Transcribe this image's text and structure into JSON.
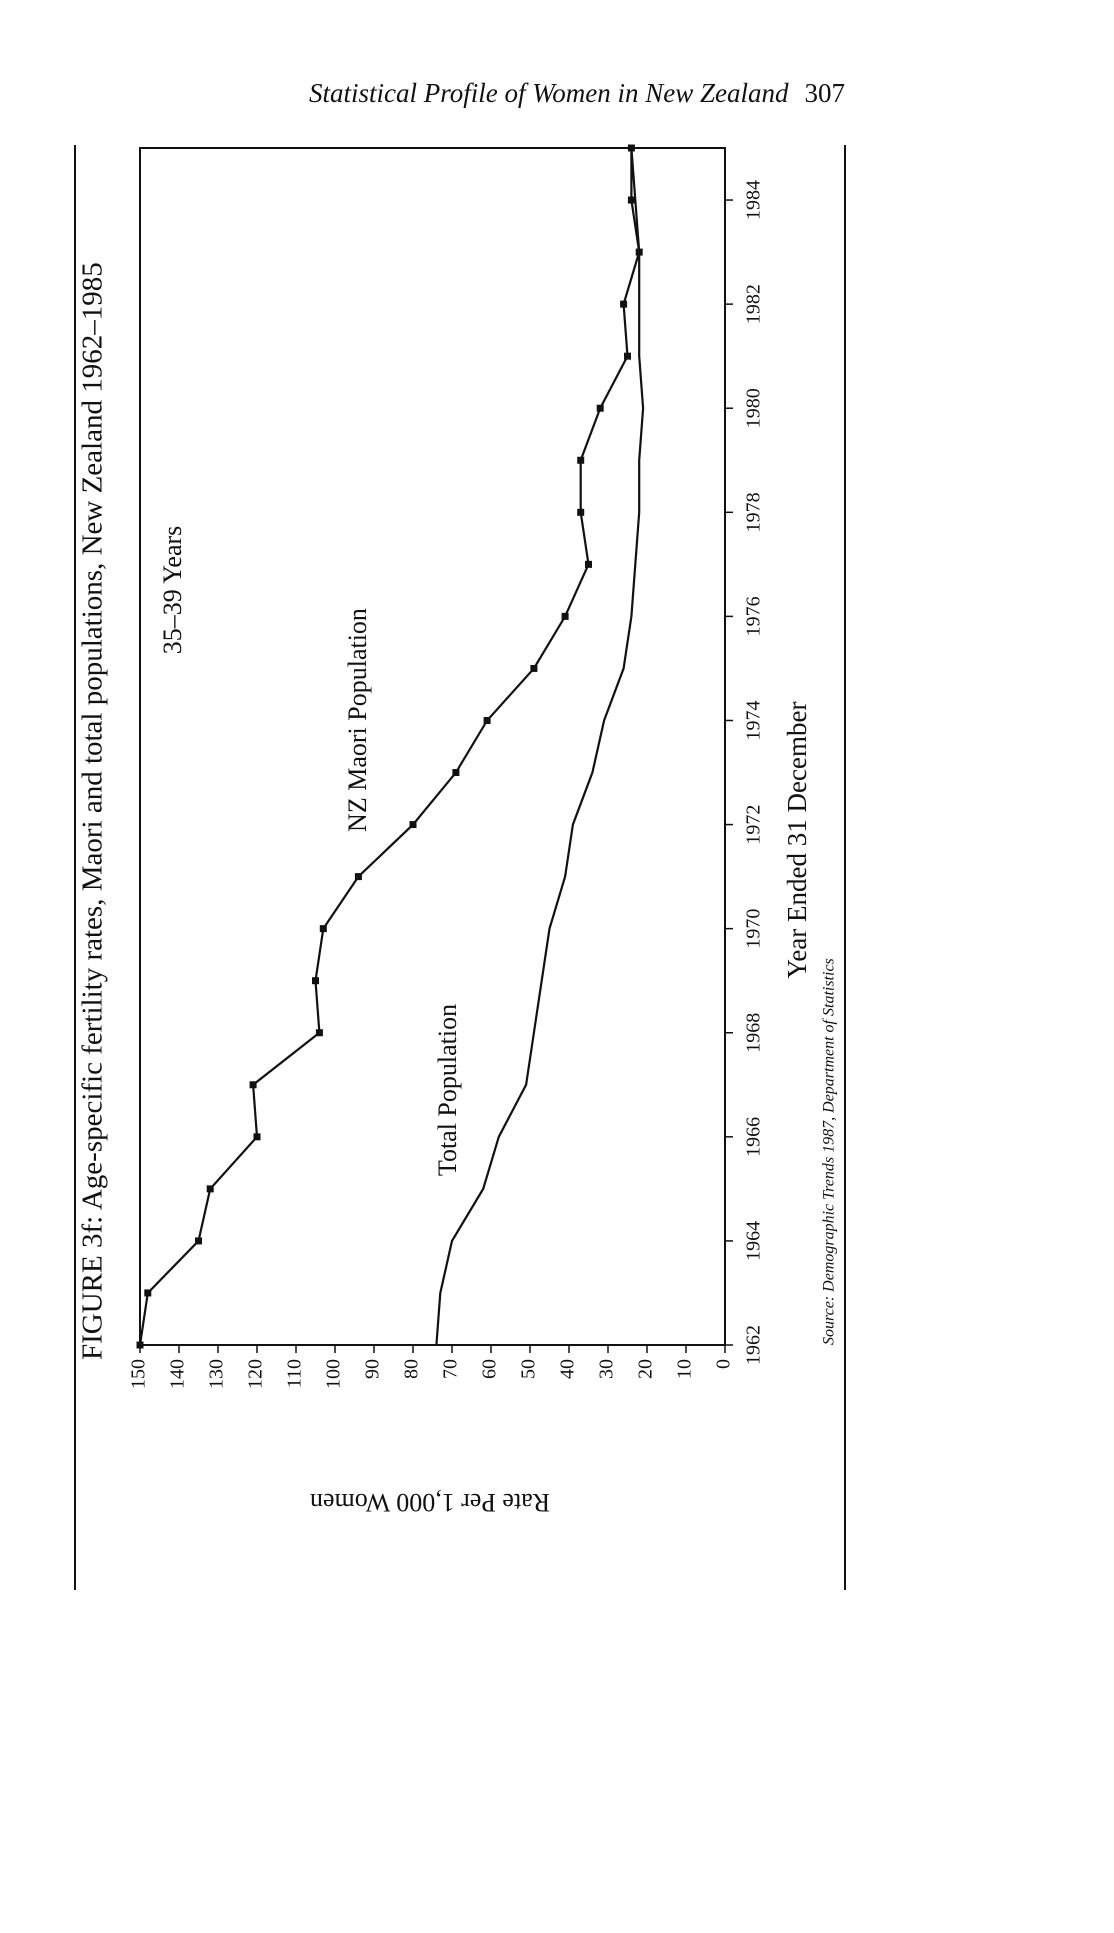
{
  "page_header": {
    "title": "Statistical Profile of Women in New Zealand",
    "page_number": 307
  },
  "chart_data": {
    "type": "line",
    "title": "FIGURE 3f: Age-specific fertility rates, Maori and total populations, New Zealand 1962–1985",
    "subtitle": "35–39 Years",
    "x_label": "Year Ended 31 December",
    "y_label": "Rate Per 1,000 Women",
    "source": "Source: Demographic Trends 1987, Department of Statistics",
    "x": [
      1962,
      1963,
      1964,
      1965,
      1966,
      1967,
      1968,
      1969,
      1970,
      1971,
      1972,
      1973,
      1974,
      1975,
      1976,
      1977,
      1978,
      1979,
      1980,
      1981,
      1982,
      1983,
      1984,
      1985
    ],
    "series": [
      {
        "name": "NZ Maori Population",
        "color": "#111111",
        "markers": true,
        "values": [
          150,
          148,
          135,
          132,
          120,
          121,
          104,
          105,
          103,
          94,
          80,
          69,
          61,
          49,
          41,
          35,
          37,
          37,
          32,
          25,
          26,
          22,
          24,
          24
        ]
      },
      {
        "name": "Total Population",
        "color": "#111111",
        "markers": false,
        "values": [
          74,
          73,
          70,
          62,
          58,
          51,
          49,
          47,
          45,
          41,
          39,
          34,
          31,
          26,
          24,
          23,
          22,
          22,
          21,
          22,
          22,
          22,
          23,
          24
        ]
      }
    ],
    "xlim": [
      1962,
      1985
    ],
    "xticks": [
      1962,
      1964,
      1966,
      1968,
      1970,
      1972,
      1974,
      1976,
      1978,
      1980,
      1982,
      1984
    ],
    "ylim": [
      0,
      150
    ],
    "yticks": [
      0,
      10,
      20,
      30,
      40,
      50,
      60,
      70,
      80,
      90,
      100,
      110,
      120,
      130,
      140,
      150
    ]
  }
}
